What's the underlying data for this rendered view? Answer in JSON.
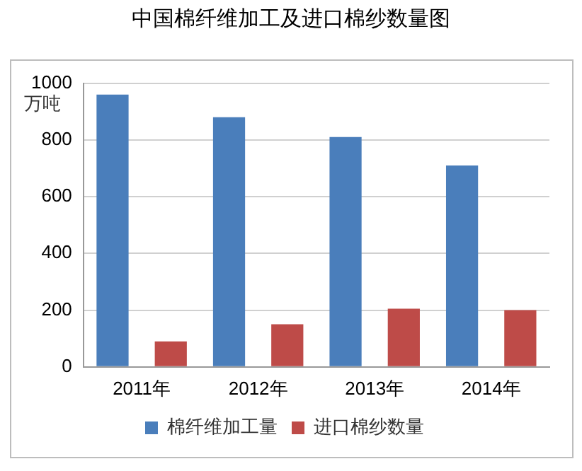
{
  "chart_data": {
    "type": "bar",
    "title": "中国棉纤维加工及进口棉纱数量图",
    "ylabel": "万吨",
    "categories": [
      "2011年",
      "2012年",
      "2013年",
      "2014年"
    ],
    "series": [
      {
        "name": "棉纤维加工量",
        "color": "#4a7ebb",
        "values": [
          960,
          880,
          810,
          710
        ]
      },
      {
        "name": "进口棉纱数量",
        "color": "#be4b48",
        "values": [
          90,
          150,
          205,
          200
        ]
      }
    ],
    "ylim": [
      0,
      1000
    ],
    "yticks": [
      0,
      200,
      400,
      600,
      800,
      1000
    ],
    "grid": "y",
    "legend": "bottom"
  }
}
